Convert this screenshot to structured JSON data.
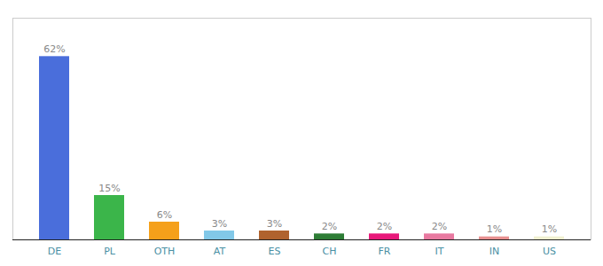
{
  "chart_data": {
    "type": "bar",
    "categories": [
      "DE",
      "PL",
      "OTH",
      "AT",
      "ES",
      "CH",
      "FR",
      "IT",
      "IN",
      "US"
    ],
    "values": [
      62,
      15,
      6,
      3,
      3,
      2,
      2,
      2,
      1,
      1
    ],
    "value_labels": [
      "62%",
      "15%",
      "6%",
      "3%",
      "3%",
      "2%",
      "2%",
      "2%",
      "1%",
      "1%"
    ],
    "colors": [
      "#4a6edb",
      "#3bb54a",
      "#f5a01a",
      "#82c8e8",
      "#b0622e",
      "#2d7d35",
      "#e8197a",
      "#e879a0",
      "#e89090",
      "#f0f0d0"
    ],
    "ylim": [
      0,
      75
    ],
    "data_labels": true,
    "tick_labels": "x",
    "grid": false
  }
}
